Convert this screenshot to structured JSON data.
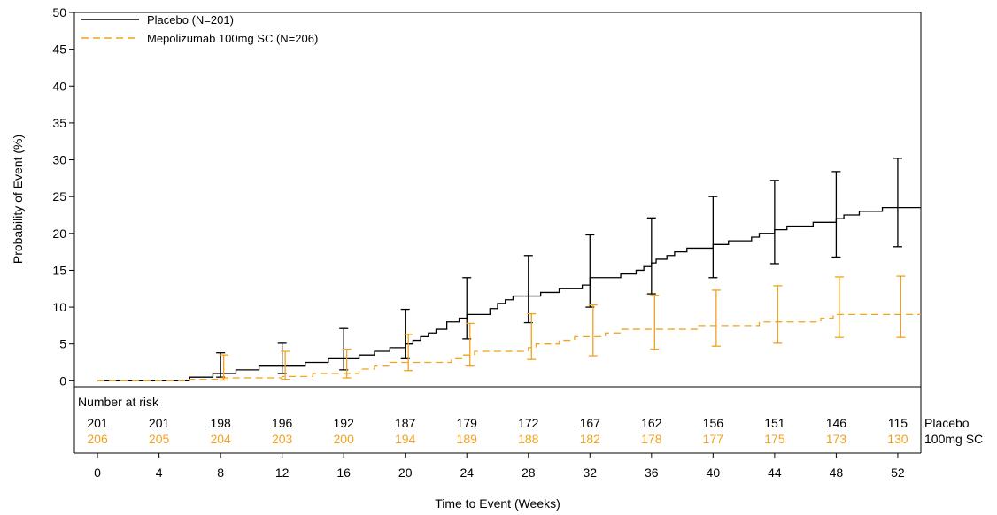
{
  "chart_data": {
    "type": "line",
    "subtype": "kaplan-meier-step",
    "xlabel": "Time to Event (Weeks)",
    "ylabel": "Probability of Event (%)",
    "xlim": [
      -1.5,
      53.5
    ],
    "ylim": [
      -0.8,
      50
    ],
    "x_ticks": [
      0,
      4,
      8,
      12,
      16,
      20,
      24,
      28,
      32,
      36,
      40,
      44,
      48,
      52
    ],
    "y_ticks": [
      0,
      5,
      10,
      15,
      20,
      25,
      30,
      35,
      40,
      45,
      50
    ],
    "legend_position": "top-left",
    "series": [
      {
        "name": "Placebo (N=201)",
        "color": "#000000",
        "line_style": "solid",
        "steps": [
          [
            0,
            0
          ],
          [
            6,
            0.5
          ],
          [
            7.5,
            1
          ],
          [
            9,
            1.5
          ],
          [
            10.5,
            2
          ],
          [
            13.5,
            2.5
          ],
          [
            15,
            3
          ],
          [
            17,
            3.5
          ],
          [
            18,
            4
          ],
          [
            19,
            4.5
          ],
          [
            20,
            5
          ],
          [
            20.5,
            5.5
          ],
          [
            21,
            6
          ],
          [
            21.5,
            6.5
          ],
          [
            22,
            7
          ],
          [
            22.7,
            8
          ],
          [
            23.5,
            8.5
          ],
          [
            24,
            9
          ],
          [
            24.8,
            9
          ],
          [
            25.5,
            9.8
          ],
          [
            26,
            10.5
          ],
          [
            26.5,
            11
          ],
          [
            27,
            11.5
          ],
          [
            28.8,
            12
          ],
          [
            30,
            12.5
          ],
          [
            31.5,
            13
          ],
          [
            32,
            14
          ],
          [
            34,
            14.5
          ],
          [
            35,
            15
          ],
          [
            35.5,
            15.5
          ],
          [
            36,
            16
          ],
          [
            36.3,
            16.5
          ],
          [
            37,
            17
          ],
          [
            37.5,
            17.5
          ],
          [
            38.3,
            18
          ],
          [
            40,
            18.5
          ],
          [
            41,
            19
          ],
          [
            42.5,
            19.5
          ],
          [
            43,
            20
          ],
          [
            44,
            20.5
          ],
          [
            44.8,
            21
          ],
          [
            46.5,
            21.5
          ],
          [
            48,
            22
          ],
          [
            48.5,
            22.5
          ],
          [
            49.5,
            23
          ],
          [
            51,
            23.5
          ],
          [
            54,
            23.5
          ]
        ],
        "ci": [
          {
            "x": 8,
            "lower": 0.5,
            "upper": 3.8
          },
          {
            "x": 12,
            "lower": 1,
            "upper": 5.1
          },
          {
            "x": 16,
            "lower": 1.5,
            "upper": 7.1
          },
          {
            "x": 20,
            "lower": 3,
            "upper": 9.7
          },
          {
            "x": 24,
            "lower": 5.7,
            "upper": 14
          },
          {
            "x": 28,
            "lower": 7.9,
            "upper": 17
          },
          {
            "x": 32,
            "lower": 10,
            "upper": 19.8
          },
          {
            "x": 36,
            "lower": 11.8,
            "upper": 22.1
          },
          {
            "x": 40,
            "lower": 14,
            "upper": 25
          },
          {
            "x": 44,
            "lower": 15.9,
            "upper": 27.2
          },
          {
            "x": 48,
            "lower": 16.8,
            "upper": 28.4
          },
          {
            "x": 52,
            "lower": 18.2,
            "upper": 30.2
          }
        ]
      },
      {
        "name": "Mepolizumab 100mg SC (N=206)",
        "color": "#f2a21d",
        "line_style": "dashed",
        "steps": [
          [
            0,
            0
          ],
          [
            6,
            0.2
          ],
          [
            8,
            0.4
          ],
          [
            12,
            0.6
          ],
          [
            14,
            1
          ],
          [
            17,
            1.6
          ],
          [
            18,
            2
          ],
          [
            19,
            2.5
          ],
          [
            23,
            3
          ],
          [
            23.8,
            3.5
          ],
          [
            24.5,
            4
          ],
          [
            28,
            4.5
          ],
          [
            28.5,
            5
          ],
          [
            30,
            5.5
          ],
          [
            31,
            6
          ],
          [
            33,
            6.5
          ],
          [
            34,
            7
          ],
          [
            39,
            7.5
          ],
          [
            43,
            8
          ],
          [
            47,
            8.5
          ],
          [
            47.8,
            9
          ],
          [
            54,
            9
          ]
        ],
        "ci": [
          {
            "x": 8,
            "lower": 0.1,
            "upper": 3.5
          },
          {
            "x": 12,
            "lower": 0.2,
            "upper": 4
          },
          {
            "x": 16,
            "lower": 0.4,
            "upper": 4.3
          },
          {
            "x": 20,
            "lower": 1.4,
            "upper": 6.3
          },
          {
            "x": 24,
            "lower": 2,
            "upper": 7.8
          },
          {
            "x": 28,
            "lower": 2.9,
            "upper": 9.1
          },
          {
            "x": 32,
            "lower": 3.4,
            "upper": 10.3
          },
          {
            "x": 36,
            "lower": 4.3,
            "upper": 11.6
          },
          {
            "x": 40,
            "lower": 4.7,
            "upper": 12.3
          },
          {
            "x": 44,
            "lower": 5.1,
            "upper": 12.9
          },
          {
            "x": 48,
            "lower": 5.9,
            "upper": 14.1
          },
          {
            "x": 52,
            "lower": 5.9,
            "upper": 14.2
          }
        ]
      }
    ],
    "risk_table": {
      "title": "Number at risk",
      "rows": [
        {
          "label": "Placebo",
          "color": "#000000",
          "values": [
            201,
            201,
            198,
            196,
            192,
            187,
            179,
            172,
            167,
            162,
            156,
            151,
            146,
            115
          ]
        },
        {
          "label": "100mg SC",
          "color": "#f2a21d",
          "values": [
            206,
            205,
            204,
            203,
            200,
            194,
            189,
            188,
            182,
            178,
            177,
            175,
            173,
            130
          ]
        }
      ]
    }
  }
}
